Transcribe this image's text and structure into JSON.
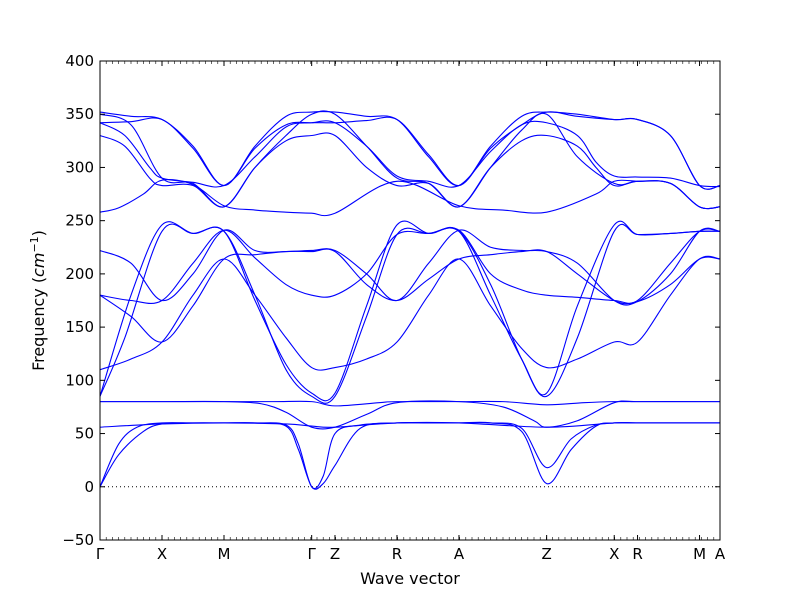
{
  "chart_data": {
    "type": "line",
    "xlabel": "Wave vector",
    "ylabel": {
      "prefix": "Frequency (",
      "math": "cm",
      "sup": "−1",
      "suffix": ")"
    },
    "ylim": [
      -50,
      400
    ],
    "yticks": [
      -50,
      0,
      50,
      100,
      150,
      200,
      250,
      300,
      350,
      400
    ],
    "ytick_labels": [
      "−50",
      "0",
      "50",
      "100",
      "150",
      "200",
      "250",
      "300",
      "350",
      "400"
    ],
    "xlim": [
      0,
      10
    ],
    "xticks": [
      {
        "label": "Γ",
        "x": 0
      },
      {
        "label": "X",
        "x": 1
      },
      {
        "label": "M",
        "x": 2
      },
      {
        "label": "Γ",
        "x": 3.414
      },
      {
        "label": "Z",
        "x": 3.79
      },
      {
        "label": "R",
        "x": 4.79
      },
      {
        "label": "A",
        "x": 5.79
      },
      {
        "label": "Z",
        "x": 7.204
      },
      {
        "label": "X",
        "x": 8.294
      },
      {
        "label": "R",
        "x": 8.67
      },
      {
        "label": "M",
        "x": 9.67
      },
      {
        "label": "A",
        "x": 10
      }
    ],
    "zero_line": true,
    "line_color": "#0000ff",
    "series": [
      {
        "x": [
          0,
          0.3,
          0.6,
          1,
          1.5,
          2,
          2.5,
          3,
          3.2,
          3.414,
          3.6,
          3.79,
          4.2,
          4.79,
          5.3,
          5.79,
          6.3,
          6.8,
          7.204,
          7.6,
          8.0,
          8.294,
          8.67,
          9.2,
          9.67,
          10
        ],
        "y": [
          0,
          40,
          56,
          60,
          60,
          60,
          60,
          58,
          40,
          0,
          10,
          50,
          58,
          60,
          60,
          60,
          60,
          55,
          18,
          45,
          58,
          60,
          60,
          60,
          60,
          60
        ]
      },
      {
        "x": [
          0,
          0.3,
          0.7,
          1,
          1.5,
          2,
          2.5,
          3,
          3.2,
          3.414,
          3.6,
          3.79,
          4.2,
          4.79,
          5.3,
          5.79,
          6.3,
          6.8,
          7.204,
          7.6,
          8.0,
          8.294,
          8.67,
          9.2,
          9.67,
          10
        ],
        "y": [
          0,
          30,
          52,
          59,
          60,
          60,
          60,
          57,
          35,
          0,
          3,
          20,
          55,
          60,
          60,
          60,
          60,
          52,
          3,
          35,
          57,
          60,
          60,
          60,
          60,
          60
        ]
      },
      {
        "x": [
          0,
          1,
          2,
          3,
          3.414,
          3.79,
          4.79,
          5.79,
          7.204,
          8.294,
          8.67,
          9.67,
          10
        ],
        "y": [
          56,
          59,
          60,
          59,
          57,
          56,
          60,
          60,
          56,
          60,
          60,
          60,
          60
        ]
      },
      {
        "x": [
          0,
          1,
          2,
          2.8,
          3.414,
          3.79,
          4.5,
          4.79,
          5.79,
          6.5,
          7.204,
          7.8,
          8.294,
          8.67,
          9.67,
          10
        ],
        "y": [
          80,
          80,
          80,
          80,
          80,
          76,
          79,
          80,
          80,
          80,
          77,
          79,
          80,
          80,
          80,
          80
        ]
      },
      {
        "x": [
          0,
          1,
          2,
          2.6,
          3.0,
          3.414,
          3.79,
          4.3,
          4.79,
          5.79,
          6.5,
          7.0,
          7.204,
          7.7,
          8.294,
          8.67,
          9.67,
          10
        ],
        "y": [
          80,
          80,
          80,
          78,
          70,
          56,
          56,
          68,
          79,
          80,
          75,
          62,
          56,
          62,
          79,
          80,
          80,
          80
        ]
      },
      {
        "x": [
          0,
          0.4,
          1,
          1.5,
          2,
          2.5,
          3,
          3.414,
          3.79,
          4.3,
          4.79,
          5.3,
          5.79,
          6.3,
          6.8,
          7.204,
          7.7,
          8.294,
          8.67,
          9.2,
          9.67,
          10
        ],
        "y": [
          85,
          140,
          240,
          238,
          240,
          180,
          110,
          85,
          85,
          160,
          237,
          238,
          240,
          190,
          120,
          85,
          140,
          240,
          237,
          238,
          240,
          240
        ]
      },
      {
        "x": [
          0,
          0.5,
          1,
          1.5,
          2,
          2.5,
          3,
          3.414,
          3.79,
          4.3,
          4.79,
          5.3,
          5.79,
          6.3,
          6.8,
          7.204,
          7.7,
          8.294,
          8.67,
          9.2,
          9.67,
          10
        ],
        "y": [
          85,
          180,
          246,
          238,
          240,
          175,
          115,
          88,
          88,
          170,
          246,
          238,
          240,
          180,
          120,
          88,
          170,
          246,
          237,
          238,
          240,
          240
        ]
      },
      {
        "x": [
          0,
          0.5,
          1,
          1.5,
          2,
          2.5,
          3,
          3.414,
          3.79,
          4.3,
          4.79,
          5.3,
          5.79,
          6.3,
          6.8,
          7.204,
          7.7,
          8.294,
          8.67,
          9.2,
          9.67,
          10
        ],
        "y": [
          110,
          120,
          136,
          180,
          214,
          180,
          140,
          112,
          112,
          120,
          136,
          180,
          214,
          170,
          130,
          112,
          120,
          136,
          136,
          180,
          214,
          214
        ]
      },
      {
        "x": [
          0,
          0.5,
          1,
          1.5,
          2,
          2.5,
          3,
          3.414,
          3.79,
          4.3,
          4.79,
          5.3,
          5.79,
          6.3,
          6.8,
          7.204,
          7.7,
          8.294,
          8.67,
          9.2,
          9.67,
          10
        ],
        "y": [
          180,
          160,
          136,
          170,
          214,
          218,
          221,
          221,
          221,
          190,
          175,
          195,
          214,
          218,
          221,
          221,
          200,
          175,
          174,
          190,
          214,
          214
        ]
      },
      {
        "x": [
          0,
          0.5,
          1,
          1.5,
          2,
          2.5,
          3,
          3.414,
          3.79,
          4.3,
          4.79,
          5.3,
          5.79,
          6.3,
          6.8,
          7.204,
          7.7,
          8.294,
          8.67,
          9.2,
          9.67,
          10
        ],
        "y": [
          180,
          175,
          175,
          210,
          241,
          215,
          190,
          180,
          180,
          200,
          237,
          238,
          241,
          200,
          185,
          180,
          178,
          175,
          175,
          210,
          240,
          240
        ]
      },
      {
        "x": [
          0,
          0.5,
          1,
          1.5,
          2,
          2.5,
          3,
          3.414,
          3.79,
          4.3,
          4.79,
          5.3,
          5.79,
          6.3,
          6.8,
          7.204,
          7.7,
          8.294,
          8.67,
          9.2,
          9.67,
          10
        ],
        "y": [
          222,
          210,
          175,
          200,
          241,
          222,
          221,
          222,
          222,
          200,
          175,
          210,
          241,
          225,
          222,
          221,
          210,
          175,
          174,
          200,
          240,
          240
        ]
      },
      {
        "x": [
          0,
          0.3,
          0.7,
          1,
          1.5,
          2,
          2.5,
          3,
          3.414,
          3.79,
          4.79,
          5.79,
          6.5,
          7.204,
          8.0,
          8.294,
          8.67,
          9.2,
          9.67,
          10
        ],
        "y": [
          258,
          262,
          275,
          288,
          284,
          264,
          260,
          258,
          257,
          257,
          287,
          264,
          260,
          258,
          275,
          287,
          287,
          285,
          263,
          263
        ]
      },
      {
        "x": [
          0,
          0.4,
          0.8,
          1,
          1.5,
          2,
          2.5,
          3,
          3.414,
          3.79,
          4.3,
          4.79,
          5.3,
          5.79,
          6.3,
          6.8,
          7.204,
          7.7,
          8.0,
          8.294,
          8.67,
          9.2,
          9.67,
          10
        ],
        "y": [
          330,
          320,
          290,
          283,
          283,
          263,
          300,
          325,
          330,
          330,
          300,
          283,
          285,
          263,
          300,
          325,
          330,
          320,
          300,
          283,
          287,
          285,
          263,
          263
        ]
      },
      {
        "x": [
          0,
          0.4,
          0.8,
          1,
          1.5,
          2,
          2.5,
          3,
          3.414,
          3.79,
          4.3,
          4.79,
          5.3,
          5.79,
          6.3,
          6.8,
          7.204,
          7.7,
          8.0,
          8.294,
          8.67,
          9.2,
          9.67,
          10
        ],
        "y": [
          342,
          330,
          300,
          290,
          286,
          283,
          310,
          338,
          342,
          342,
          320,
          292,
          287,
          283,
          315,
          340,
          342,
          330,
          305,
          292,
          291,
          290,
          283,
          282
        ]
      },
      {
        "x": [
          0,
          0.5,
          1,
          1.5,
          2,
          2.5,
          3,
          3.414,
          3.79,
          4.3,
          4.79,
          5.3,
          5.79,
          6.3,
          6.8,
          7.204,
          7.7,
          8.294,
          8.67,
          9.2,
          9.67,
          10
        ],
        "y": [
          352,
          348,
          345,
          320,
          283,
          320,
          348,
          352,
          352,
          348,
          345,
          310,
          283,
          320,
          348,
          352,
          350,
          345,
          345,
          330,
          283,
          283
        ]
      },
      {
        "x": [
          0,
          0.5,
          1,
          1.5,
          2,
          2.5,
          3,
          3.414,
          3.79,
          4.3,
          4.79,
          5.3,
          5.79,
          6.3,
          6.8,
          7.204,
          7.7,
          8.294,
          8.67,
          9.2,
          9.67,
          10
        ],
        "y": [
          342,
          343,
          345,
          318,
          283,
          318,
          340,
          342,
          342,
          344,
          345,
          312,
          283,
          318,
          340,
          352,
          348,
          345,
          345,
          330,
          283,
          283
        ]
      },
      {
        "x": [
          0,
          0.5,
          1,
          1.5,
          2,
          2.5,
          3,
          3.414,
          3.79,
          4.3,
          4.79,
          5.3,
          5.79,
          6.3,
          6.8,
          7.204,
          7.7,
          8.294,
          8.67,
          9.2,
          9.67,
          10
        ],
        "y": [
          350,
          340,
          290,
          285,
          263,
          300,
          330,
          350,
          350,
          320,
          290,
          285,
          263,
          300,
          335,
          350,
          310,
          285,
          287,
          285,
          263,
          263
        ]
      }
    ]
  }
}
